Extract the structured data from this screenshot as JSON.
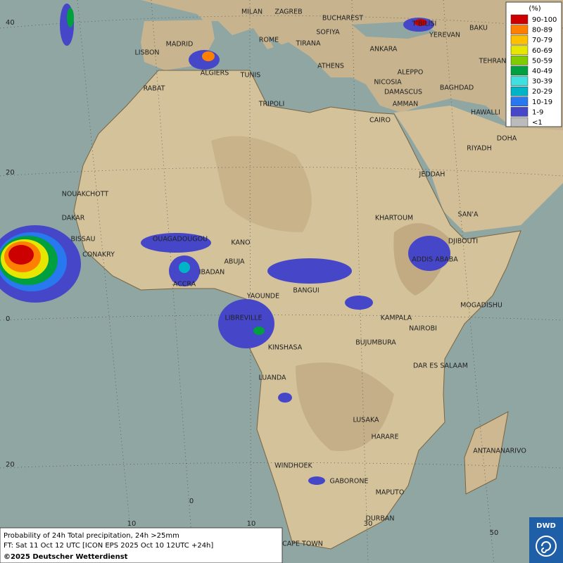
{
  "map": {
    "cities": [
      "MILAN",
      "ZAGREB",
      "BUCHAREST",
      "T'BILISI",
      "BAKU",
      "ROME",
      "SOFIYA",
      "YEREVAN",
      "MADRID",
      "TIRANA",
      "ANKARA",
      "TEHRAN",
      "LISBON",
      "ALGIERS",
      "TUNIS",
      "ATHENS",
      "ALEPPO",
      "RABAT",
      "NICOSIA",
      "BAGHDAD",
      "DAMASCUS",
      "TRIPOLI",
      "AMMAN",
      "HAWALLI",
      "CAIRO",
      "DOHA",
      "RIYADH",
      "JEDDAH",
      "NOUAKCHOTT",
      "DAKAR",
      "KHARTOUM",
      "SAN'A",
      "BISSAU",
      "OUAGADOUGOU",
      "KANO",
      "DJIBOUTI",
      "CONAKRY",
      "ABUJA",
      "ADDIS ABABA",
      "IBADAN",
      "ACCRA",
      "BANGUI",
      "YAOUNDE",
      "MOGADISHU",
      "KAMPALA",
      "LIBREVILLE",
      "NAIROBI",
      "BUJUMBURA",
      "KINSHASA",
      "DAR ES SALAAM",
      "LUANDA",
      "LUSAKA",
      "HARARE",
      "ANTANANARIVO",
      "WINDHOEK",
      "GABORONE",
      "MAPUTO",
      "DURBAN",
      "CAPE TOWN"
    ],
    "grid_labels": [
      "40",
      "20",
      "0",
      "20",
      "0",
      "10",
      "10",
      "30",
      "50"
    ]
  },
  "legend": {
    "title": "(%)",
    "items": [
      {
        "label": "90-100",
        "color": "#cc0000"
      },
      {
        "label": "80-89",
        "color": "#ff8000"
      },
      {
        "label": "70-79",
        "color": "#ffc000"
      },
      {
        "label": "60-69",
        "color": "#e6e600"
      },
      {
        "label": "50-59",
        "color": "#80cc00"
      },
      {
        "label": "40-49",
        "color": "#00a040"
      },
      {
        "label": "30-39",
        "color": "#40e0e0"
      },
      {
        "label": "20-29",
        "color": "#00b4c8"
      },
      {
        "label": "10-19",
        "color": "#2878f0"
      },
      {
        "label": "1-9",
        "color": "#4646c8"
      },
      {
        "label": "<1",
        "color": "#bbbbbb"
      }
    ]
  },
  "footer": {
    "line1": "Probability of 24h Total precipitation, 24h >25mm",
    "line2": "FT: Sat 11 Oct 12 UTC [ICON EPS 2025 Oct 10 12UTC +24h]",
    "line3": "©2025 Deutscher Wetterdienst",
    "logo": "DWD"
  }
}
